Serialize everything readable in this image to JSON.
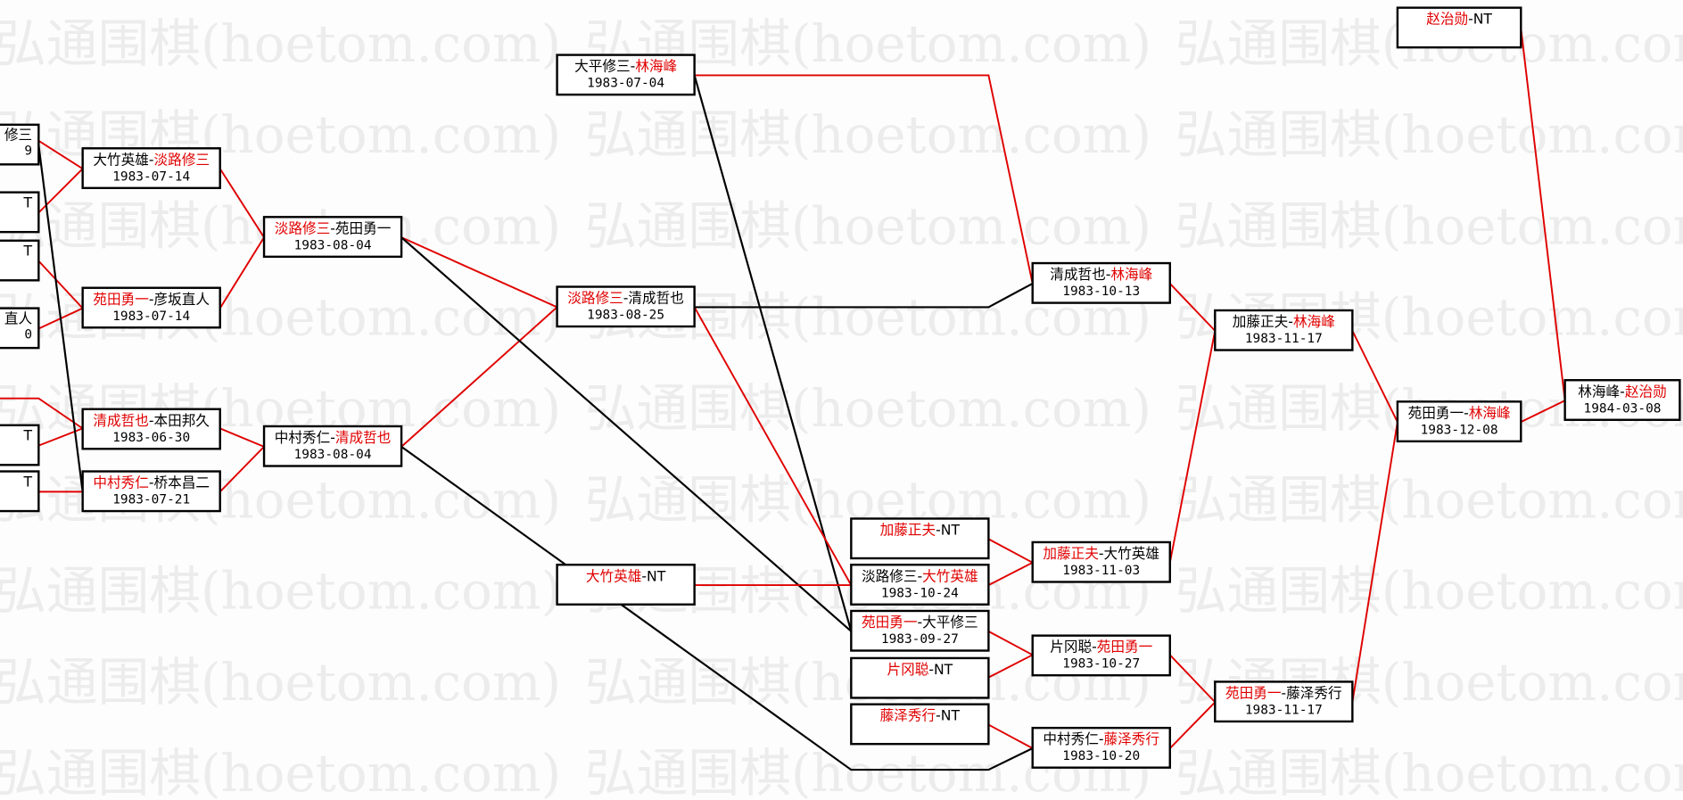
{
  "watermark": "弘通围棋(hoetom.com)",
  "colors": {
    "winner": "#e00000",
    "loser": "#000000",
    "win_line": "#e00000",
    "loss_line": "#000000"
  },
  "partial_boxes": [
    {
      "name": "修三",
      "red": true,
      "date": "9"
    },
    {
      "name": "T",
      "red": false,
      "date": ""
    },
    {
      "name": "T",
      "red": false,
      "date": ""
    },
    {
      "name": "直人",
      "red": true,
      "date": "0"
    },
    {
      "name": "T",
      "red": false,
      "date": ""
    },
    {
      "name": "T",
      "red": false,
      "date": ""
    }
  ],
  "matches": [
    {
      "id": "m1",
      "p1": "大竹英雄",
      "p2": "淡路修三",
      "winner": 2,
      "date": "1983-07-14"
    },
    {
      "id": "m2",
      "p1": "苑田勇一",
      "p2": "彦坂直人",
      "winner": 1,
      "date": "1983-07-14"
    },
    {
      "id": "m3",
      "p1": "清成哲也",
      "p2": "本田邦久",
      "winner": 1,
      "date": "1983-06-30"
    },
    {
      "id": "m4",
      "p1": "中村秀仁",
      "p2": "桥本昌二",
      "winner": 1,
      "date": "1983-07-21"
    },
    {
      "id": "m5",
      "p1": "淡路修三",
      "p2": "苑田勇一",
      "winner": 1,
      "date": "1983-08-04"
    },
    {
      "id": "m6",
      "p1": "中村秀仁",
      "p2": "清成哲也",
      "winner": 2,
      "date": "1983-08-04"
    },
    {
      "id": "m7",
      "p1": "大平修三",
      "p2": "林海峰",
      "winner": 2,
      "date": "1983-07-04"
    },
    {
      "id": "m8",
      "p1": "淡路修三",
      "p2": "清成哲也",
      "winner": 1,
      "date": "1983-08-25"
    },
    {
      "id": "m9",
      "p1": "大竹英雄",
      "p2": "NT",
      "winner": 1,
      "date": ""
    },
    {
      "id": "m10",
      "p1": "加藤正夫",
      "p2": "NT",
      "winner": 1,
      "date": ""
    },
    {
      "id": "m11",
      "p1": "淡路修三",
      "p2": "大竹英雄",
      "winner": 2,
      "date": "1983-10-24"
    },
    {
      "id": "m12",
      "p1": "苑田勇一",
      "p2": "大平修三",
      "winner": 1,
      "date": "1983-09-27"
    },
    {
      "id": "m13",
      "p1": "片冈聪",
      "p2": "NT",
      "winner": 1,
      "date": ""
    },
    {
      "id": "m14",
      "p1": "藤泽秀行",
      "p2": "NT",
      "winner": 1,
      "date": ""
    },
    {
      "id": "m15",
      "p1": "清成哲也",
      "p2": "林海峰",
      "winner": 2,
      "date": "1983-10-13"
    },
    {
      "id": "m16",
      "p1": "加藤正夫",
      "p2": "大竹英雄",
      "winner": 1,
      "date": "1983-11-03"
    },
    {
      "id": "m17",
      "p1": "片冈聪",
      "p2": "苑田勇一",
      "winner": 2,
      "date": "1983-10-27"
    },
    {
      "id": "m18",
      "p1": "中村秀仁",
      "p2": "藤泽秀行",
      "winner": 2,
      "date": "1983-10-20"
    },
    {
      "id": "m19",
      "p1": "加藤正夫",
      "p2": "林海峰",
      "winner": 2,
      "date": "1983-11-17"
    },
    {
      "id": "m20",
      "p1": "苑田勇一",
      "p2": "藤泽秀行",
      "winner": 1,
      "date": "1983-11-17"
    },
    {
      "id": "m21",
      "p1": "赵治勋",
      "p2": "NT",
      "winner": 1,
      "date": ""
    },
    {
      "id": "m22",
      "p1": "苑田勇一",
      "p2": "林海峰",
      "winner": 2,
      "date": "1983-12-08"
    },
    {
      "id": "m23",
      "p1": "林海峰",
      "p2": "赵治勋",
      "winner": 2,
      "date": "1984-03-08"
    }
  ]
}
